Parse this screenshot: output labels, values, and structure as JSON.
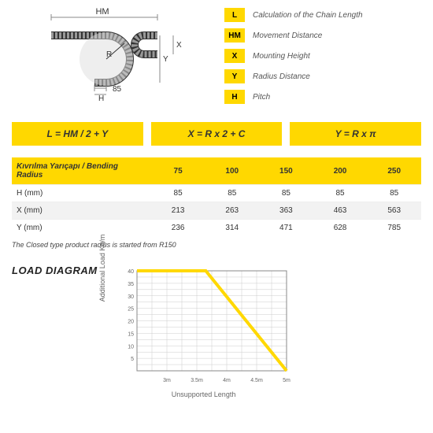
{
  "diagram": {
    "labels": {
      "HM": "HM",
      "R": "R",
      "Y": "Y",
      "X": "X",
      "H": "H",
      "H_dim": "85"
    }
  },
  "legend": [
    {
      "symbol": "L",
      "text": "Calculation of the Chain Length"
    },
    {
      "symbol": "HM",
      "text": "Movement Distance"
    },
    {
      "symbol": "X",
      "text": "Mounting Height"
    },
    {
      "symbol": "Y",
      "text": "Radius Distance"
    },
    {
      "symbol": "H",
      "text": "Pitch"
    }
  ],
  "formulas": [
    "L = HM / 2 + Y",
    "X = R x 2 + C",
    "Y = R x π"
  ],
  "table": {
    "header_label": "Kıvrılma Yarıçapı / Bending Radius",
    "columns": [
      "75",
      "100",
      "150",
      "200",
      "250"
    ],
    "rows": [
      {
        "label": "H (mm)",
        "values": [
          "85",
          "85",
          "85",
          "85",
          "85"
        ]
      },
      {
        "label": "X (mm)",
        "values": [
          "213",
          "263",
          "363",
          "463",
          "563"
        ]
      },
      {
        "label": "Y (mm)",
        "values": [
          "236",
          "314",
          "471",
          "628",
          "785"
        ]
      }
    ]
  },
  "note": "The Closed type product radius is started from R150",
  "load_diagram": {
    "title": "LOAD DIAGRAM",
    "ylabel": "Additional Load\nKg/m",
    "xlabel": "Unsupported Length",
    "yticks": [
      "40",
      "35",
      "30",
      "25",
      "20",
      "15",
      "10",
      "5"
    ],
    "xticks": [
      "3m",
      "3.5m",
      "4m",
      "4.5m",
      "5m"
    ],
    "line_color": "#ffd800",
    "grid_color": "#cccccc",
    "points": [
      [
        0,
        0
      ],
      [
        0.46,
        0
      ],
      [
        1,
        1
      ]
    ]
  }
}
